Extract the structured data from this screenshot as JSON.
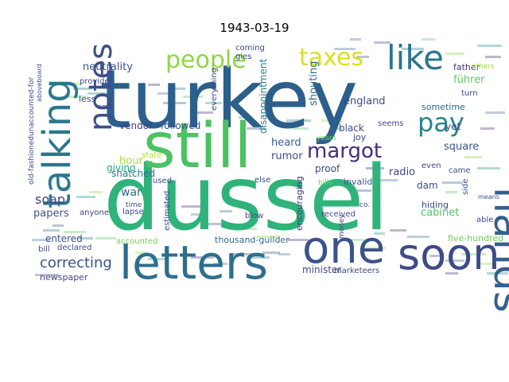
{
  "chart_data": {
    "type": "wordcloud",
    "title": "1943-03-19",
    "words": [
      {
        "text": "dussel",
        "color": "#2fb37a"
      },
      {
        "text": "turkey",
        "color": "#2c5f8b"
      },
      {
        "text": "still",
        "color": "#4cc262"
      },
      {
        "text": "letters",
        "color": "#2d6e8e"
      },
      {
        "text": "one",
        "color": "#3b528b"
      },
      {
        "text": "soon",
        "color": "#3e4a89"
      },
      {
        "text": "hands",
        "color": "#355f8d"
      },
      {
        "text": "talking",
        "color": "#2a788e"
      },
      {
        "text": "notes",
        "color": "#3d4f8a"
      },
      {
        "text": "like",
        "color": "#2a768e"
      },
      {
        "text": "people",
        "color": "#8fd744"
      },
      {
        "text": "taxes",
        "color": "#d9e021"
      },
      {
        "text": "pay",
        "color": "#26828e"
      },
      {
        "text": "margot",
        "color": "#472d7b"
      },
      {
        "text": "correcting",
        "color": "#3b528b"
      },
      {
        "text": "papers",
        "color": "#3b528b"
      },
      {
        "text": "soap",
        "color": "#414487"
      },
      {
        "text": "neutrality",
        "color": "#3b528b"
      },
      {
        "text": "hour",
        "color": "#a8db34"
      },
      {
        "text": "vendor",
        "color": "#424086"
      },
      {
        "text": "followed",
        "color": "#3b528b"
      },
      {
        "text": "snatched",
        "color": "#2c728e"
      },
      {
        "text": "giving",
        "color": "#20a386"
      },
      {
        "text": "war",
        "color": "#31688e"
      },
      {
        "text": "heard",
        "color": "#355f8d"
      },
      {
        "text": "rumor",
        "color": "#3e4c8a"
      },
      {
        "text": "england",
        "color": "#3e4a89"
      },
      {
        "text": "radio",
        "color": "#3f4889"
      },
      {
        "text": "disappointment",
        "color": "#277f8e"
      },
      {
        "text": "shouting",
        "color": "#2e6f8e"
      },
      {
        "text": "cabinet",
        "color": "#54c568"
      },
      {
        "text": "minister",
        "color": "#3e4989"
      },
      {
        "text": "thousand-guilder",
        "color": "#31688e"
      },
      {
        "text": "encouraging",
        "color": "#46337f"
      },
      {
        "text": "newspaper",
        "color": "#414487"
      },
      {
        "text": "entered",
        "color": "#3b528b"
      },
      {
        "text": "square",
        "color": "#3b528b"
      },
      {
        "text": "father",
        "color": "#46327e"
      },
      {
        "text": "führer",
        "color": "#5ec962"
      },
      {
        "text": "sometime",
        "color": "#31688e"
      },
      {
        "text": "black",
        "color": "#3e4a89"
      },
      {
        "text": "joy",
        "color": "#3e4a89"
      },
      {
        "text": "proof",
        "color": "#3e4a89"
      },
      {
        "text": "invalid",
        "color": "#38588c"
      },
      {
        "text": "dam",
        "color": "#3e4a89"
      },
      {
        "text": "hiding",
        "color": "#3e4a89"
      },
      {
        "text": "yet",
        "color": "#3e4a89"
      },
      {
        "text": "side",
        "color": "#3e4a89"
      },
      {
        "text": "five-hundred",
        "color": "#6ece58"
      },
      {
        "text": "marketeers",
        "color": "#3e4a89"
      },
      {
        "text": "accounted",
        "color": "#7ad151"
      },
      {
        "text": "declared",
        "color": "#3e4a89"
      },
      {
        "text": "bill",
        "color": "#3e4a89"
      },
      {
        "text": "lapse",
        "color": "#3e4a89"
      },
      {
        "text": "anyone",
        "color": "#3e4a89"
      },
      {
        "text": "less",
        "color": "#3e4a89"
      },
      {
        "text": "next",
        "color": "#3e4a89"
      },
      {
        "text": "provide",
        "color": "#3e4a89"
      },
      {
        "text": "received",
        "color": "#3e4a89"
      },
      {
        "text": "blow",
        "color": "#3e4a89"
      },
      {
        "text": "else",
        "color": "#3e4a89"
      },
      {
        "text": "used",
        "color": "#3e4a89"
      },
      {
        "text": "coming",
        "color": "#3e4a89"
      },
      {
        "text": "gies",
        "color": "#3e4a89"
      },
      {
        "text": "everything",
        "color": "#3e4a89"
      },
      {
        "text": "estimated",
        "color": "#3e4a89"
      },
      {
        "text": "money",
        "color": "#3e4a89"
      },
      {
        "text": "state",
        "color": "#b5de2b"
      },
      {
        "text": "turn",
        "color": "#3e4a89"
      },
      {
        "text": "others",
        "color": "#a2da37"
      },
      {
        "text": "came",
        "color": "#3e4a89"
      },
      {
        "text": "even",
        "color": "#3e4a89"
      },
      {
        "text": "seems",
        "color": "#3e4a89"
      },
      {
        "text": "years",
        "color": "#6ece58"
      },
      {
        "text": "bills",
        "color": "#6ece58"
      },
      {
        "text": "able",
        "color": "#3e4a89"
      },
      {
        "text": "old-fashionedunaccounted-for",
        "color": "#3e4a89"
      },
      {
        "text": "aboveboard",
        "color": "#3e4a89"
      },
      {
        "text": "time",
        "color": "#3e4a89"
      },
      {
        "text": "co.",
        "color": "#3e4a89"
      },
      {
        "text": "means",
        "color": "#3e4a89"
      }
    ]
  }
}
